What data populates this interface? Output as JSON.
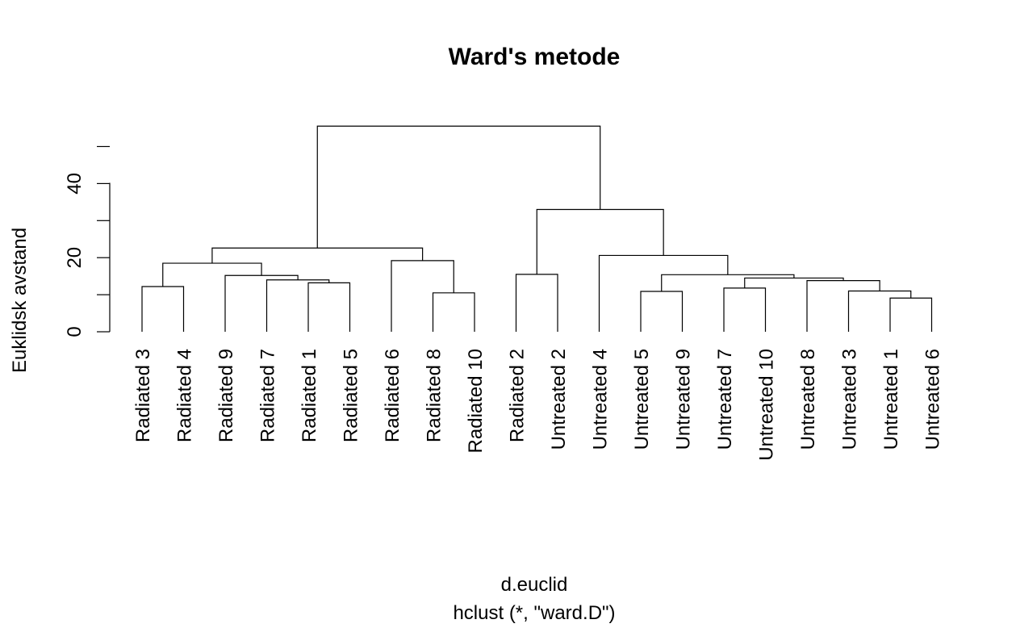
{
  "chart_data": {
    "type": "dendrogram",
    "title": "Ward's metode",
    "ylabel": "Euklidsk avstand",
    "xlabel": "d.euclid",
    "sublabel": "hclust (*, \"ward.D\")",
    "ylim": [
      0,
      60
    ],
    "yticks": [
      0,
      20,
      40
    ],
    "yticks_unlabeled": [
      10,
      30,
      50
    ],
    "leaves": [
      "Radiated 3",
      "Radiated 4",
      "Radiated 9",
      "Radiated 7",
      "Radiated 1",
      "Radiated 5",
      "Radiated 6",
      "Radiated 8",
      "Radiated 10",
      "Radiated 2",
      "Untreated 2",
      "Untreated 4",
      "Untreated 5",
      "Untreated 9",
      "Untreated 7",
      "Untreated 10",
      "Untreated 8",
      "Untreated 3",
      "Untreated 1",
      "Untreated 6"
    ],
    "merges": [
      {
        "left": 18,
        "right": 19,
        "height": 9.1
      },
      {
        "left": 7,
        "right": 8,
        "height": 10.5
      },
      {
        "left": 12,
        "right": 13,
        "height": 10.9
      },
      {
        "left": 17,
        "merge": 0,
        "height": 11.0
      },
      {
        "left": 14,
        "right": 15,
        "height": 11.8
      },
      {
        "left": 0,
        "right": 1,
        "height": 12.2
      },
      {
        "left": 4,
        "right": 5,
        "height": 13.2
      },
      {
        "left": 16,
        "merge": 3,
        "height": 13.8
      },
      {
        "left": 3,
        "merge": 6,
        "height": 14.0
      },
      {
        "merge": 4,
        "merge2": 7,
        "height": 14.5
      },
      {
        "left": 2,
        "merge": 8,
        "height": 15.2
      },
      {
        "merge": 2,
        "merge2": 9,
        "height": 15.4
      },
      {
        "left": 9,
        "right": 10,
        "height": 15.5
      },
      {
        "left": 6,
        "merge": 1,
        "height": 19.2
      },
      {
        "merge": 5,
        "merge2": 10,
        "height": 18.5
      },
      {
        "left": 11,
        "merge": 11,
        "height": 20.6
      },
      {
        "merge": 14,
        "merge2": 13,
        "height": 22.6
      },
      {
        "merge": 12,
        "merge2": 15,
        "height": 33.0
      },
      {
        "merge": 16,
        "merge2": 17,
        "height": 55.5
      }
    ]
  }
}
